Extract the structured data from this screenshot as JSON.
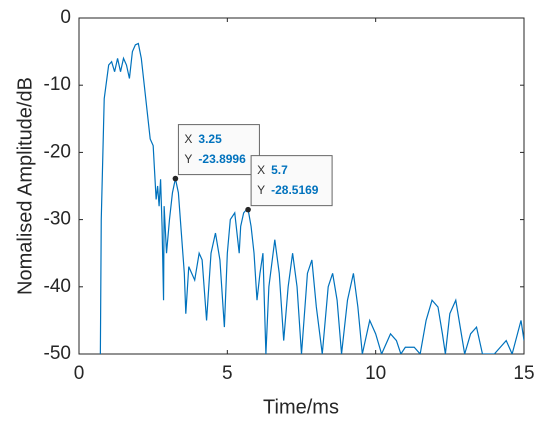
{
  "chart_data": {
    "type": "line",
    "xlabel": "Time/ms",
    "ylabel": "Nomalised Amplitude/dB",
    "xlim": [
      0,
      15
    ],
    "ylim": [
      -50,
      0
    ],
    "xticks": [
      0,
      5,
      10,
      15
    ],
    "yticks": [
      0,
      -10,
      -20,
      -30,
      -40,
      -50
    ],
    "series": [
      {
        "color": "#0072bd",
        "x": [
          0.72,
          0.75,
          0.85,
          1.0,
          1.1,
          1.2,
          1.3,
          1.4,
          1.5,
          1.6,
          1.7,
          1.8,
          1.9,
          2.0,
          2.1,
          2.2,
          2.3,
          2.4,
          2.5,
          2.55,
          2.6,
          2.65,
          2.7,
          2.75,
          2.8,
          2.85,
          2.87,
          2.95,
          3.05,
          3.15,
          3.25,
          3.35,
          3.45,
          3.55,
          3.6,
          3.7,
          3.8,
          3.9,
          4.05,
          4.15,
          4.3,
          4.45,
          4.6,
          4.75,
          4.9,
          5.0,
          5.1,
          5.25,
          5.4,
          5.45,
          5.55,
          5.65,
          5.7,
          5.8,
          5.9,
          6.0,
          6.1,
          6.2,
          6.3,
          6.4,
          6.6,
          6.75,
          6.9,
          7.05,
          7.2,
          7.35,
          7.5,
          7.7,
          7.85,
          8.0,
          8.2,
          8.4,
          8.55,
          8.7,
          8.85,
          9.05,
          9.25,
          9.4,
          9.55,
          9.8,
          10.0,
          10.2,
          10.5,
          10.7,
          10.85,
          11.0,
          11.3,
          11.5,
          11.7,
          11.9,
          12.1,
          12.25,
          12.35,
          12.5,
          12.7,
          12.85,
          13.0,
          13.2,
          13.4,
          13.6,
          14.0,
          14.4,
          14.6,
          14.9,
          15.0
        ],
        "values": [
          -50,
          -30,
          -12,
          -7,
          -6.5,
          -8,
          -6,
          -8,
          -6,
          -7,
          -9,
          -5,
          -4,
          -3.8,
          -6,
          -10,
          -14,
          -18,
          -19,
          -23,
          -27,
          -25,
          -28,
          -24,
          -31,
          -42,
          -28,
          -35,
          -30,
          -26,
          -23.9,
          -26,
          -32,
          -38,
          -44,
          -37,
          -38,
          -39,
          -35,
          -36,
          -45,
          -35,
          -32,
          -36,
          -46,
          -35,
          -30,
          -29,
          -35,
          -31,
          -29,
          -28.5,
          -28.5,
          -31,
          -35,
          -42,
          -38,
          -35,
          -50,
          -40,
          -33,
          -38,
          -48,
          -40,
          -35,
          -40,
          -50,
          -38,
          -36,
          -43,
          -50,
          -40,
          -38,
          -42,
          -50,
          -42,
          -38,
          -43,
          -50,
          -45,
          -47,
          -50,
          -47,
          -48,
          -50,
          -49,
          -49,
          -50,
          -45,
          -42,
          -43,
          -47,
          -50,
          -44,
          -42,
          -46,
          -50,
          -47,
          -46,
          -50,
          -50,
          -48,
          -50,
          -45,
          -48
        ]
      }
    ],
    "datatip_keys": [
      "X",
      "Y"
    ],
    "datatips": [
      {
        "x": 3.25,
        "y": -23.8996
      },
      {
        "x": 5.7,
        "y": -28.5169
      }
    ]
  }
}
